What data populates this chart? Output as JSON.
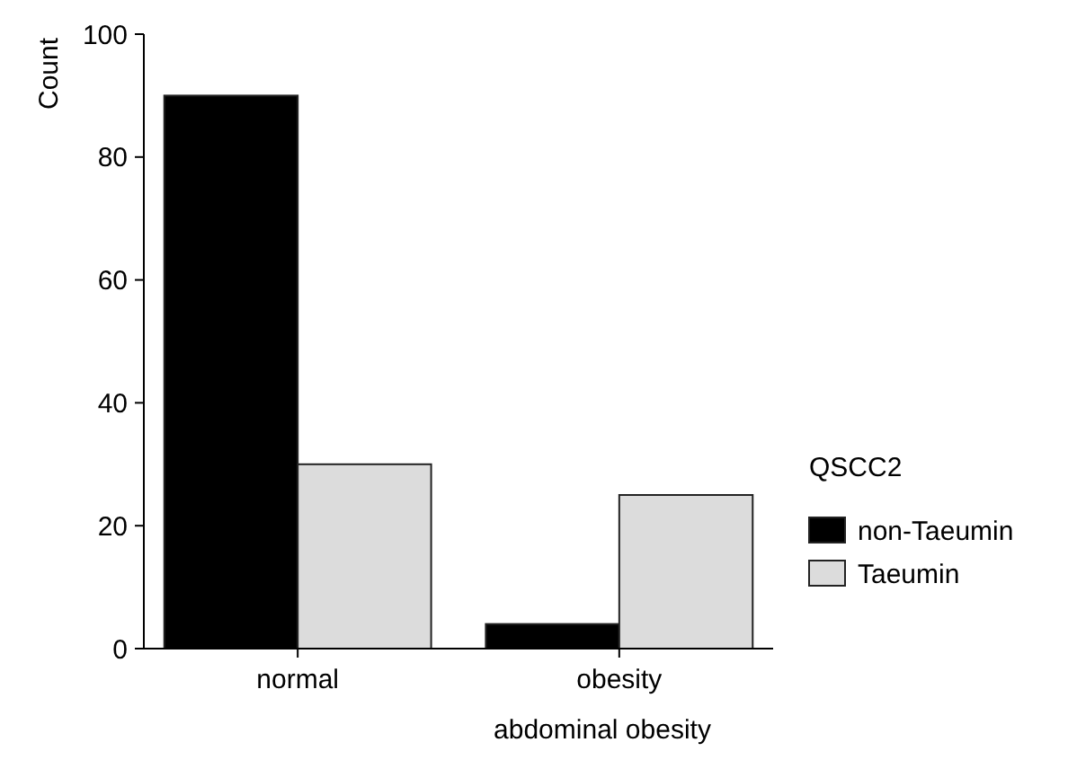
{
  "chart_data": {
    "type": "bar",
    "xlabel": "abdominal obesity",
    "ylabel": "Count",
    "legend_title": "QSCC2",
    "categories": [
      "normal",
      "obesity"
    ],
    "series": [
      {
        "name": "non-Taeumin",
        "color": "#000000",
        "values": [
          90,
          4
        ]
      },
      {
        "name": "Taeumin",
        "color": "#dcdcdc",
        "values": [
          30,
          25
        ]
      }
    ],
    "ylim": [
      0,
      100
    ],
    "yticks": [
      0,
      20,
      40,
      60,
      80,
      100
    ],
    "legend": "right"
  }
}
